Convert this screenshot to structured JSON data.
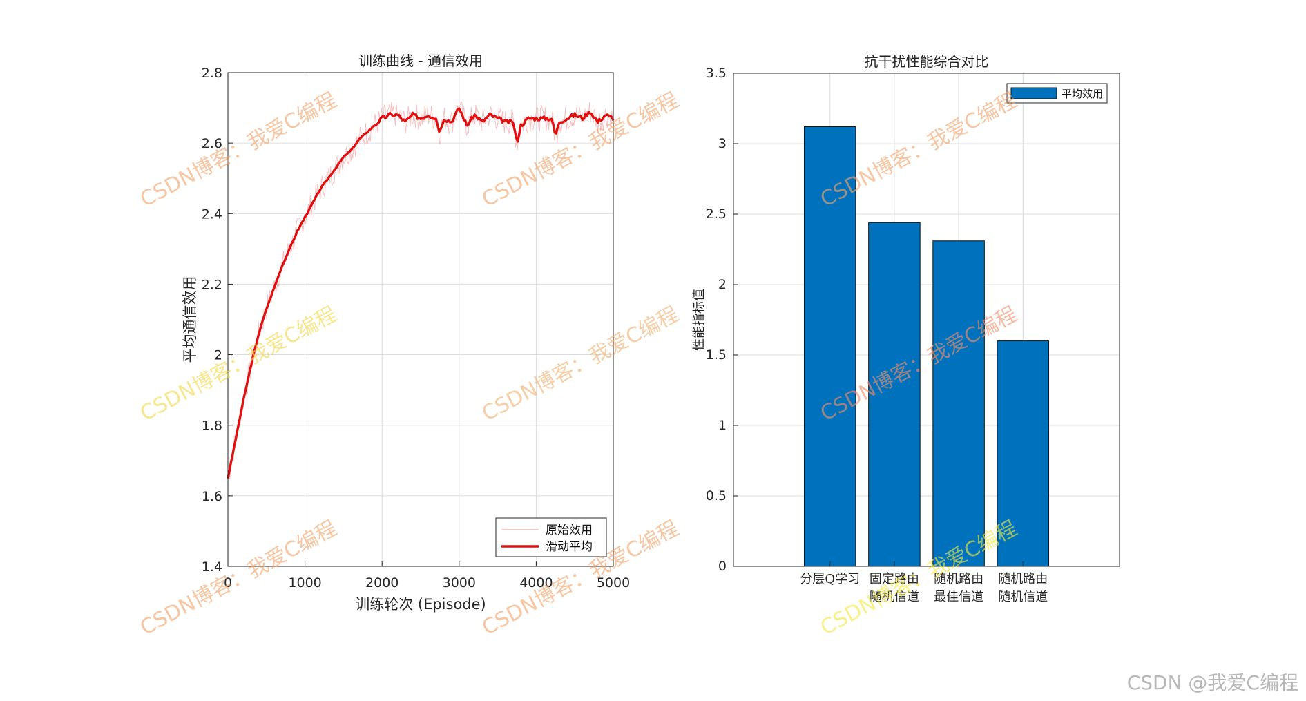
{
  "chart_data": [
    {
      "type": "line",
      "title": "训练曲线 - 通信效用",
      "xlabel": "训练轮次 (Episode)",
      "ylabel": "平均通信效用",
      "xlim": [
        0,
        5000
      ],
      "ylim": [
        1.4,
        2.8
      ],
      "xticks": [
        0,
        1000,
        2000,
        3000,
        4000,
        5000
      ],
      "xtick_labels": [
        "0",
        "1000",
        "2000",
        "3000",
        "4000",
        "5000"
      ],
      "yticks": [
        1.4,
        1.6,
        1.8,
        2.0,
        2.2,
        2.4,
        2.6,
        2.8
      ],
      "ytick_labels": [
        "1.4",
        "1.6",
        "1.8",
        "2",
        "2.2",
        "2.4",
        "2.6",
        "2.8"
      ],
      "grid": true,
      "legend": "bottom-right",
      "series": [
        {
          "name": "原始效用",
          "color": "#f4b6b6",
          "style": "thin-noisy"
        },
        {
          "name": "滑动平均",
          "color": "#e01010",
          "x": [
            0,
            100,
            200,
            300,
            400,
            500,
            600,
            700,
            800,
            900,
            1000,
            1100,
            1200,
            1300,
            1400,
            1500,
            1600,
            1700,
            1800,
            1900,
            2000,
            2100,
            2200,
            2300,
            2400,
            2500,
            2600,
            2700,
            2750,
            2800,
            2900,
            3000,
            3100,
            3200,
            3300,
            3400,
            3500,
            3600,
            3700,
            3750,
            3800,
            3900,
            4000,
            4100,
            4200,
            4250,
            4300,
            4400,
            4500,
            4600,
            4700,
            4800,
            4900,
            5000
          ],
          "y": [
            1.65,
            1.76,
            1.87,
            1.97,
            2.06,
            2.13,
            2.19,
            2.25,
            2.3,
            2.35,
            2.39,
            2.43,
            2.47,
            2.5,
            2.53,
            2.56,
            2.58,
            2.61,
            2.63,
            2.65,
            2.67,
            2.68,
            2.68,
            2.66,
            2.68,
            2.67,
            2.68,
            2.67,
            2.63,
            2.67,
            2.66,
            2.7,
            2.65,
            2.68,
            2.66,
            2.68,
            2.67,
            2.66,
            2.66,
            2.6,
            2.65,
            2.67,
            2.67,
            2.67,
            2.67,
            2.62,
            2.66,
            2.67,
            2.68,
            2.67,
            2.69,
            2.66,
            2.68,
            2.67
          ]
        }
      ]
    },
    {
      "type": "bar",
      "title": "抗干扰性能综合对比",
      "ylabel": "性能指标值",
      "ylim": [
        0,
        3.5
      ],
      "yticks": [
        0,
        0.5,
        1,
        1.5,
        2,
        2.5,
        3,
        3.5
      ],
      "ytick_labels": [
        "0",
        "0.5",
        "1",
        "1.5",
        "2",
        "2.5",
        "3",
        "3.5"
      ],
      "categories": [
        "分层Q学习",
        "固定路由\n随机信道",
        "随机路由\n最佳信道",
        "随机路由\n随机信道"
      ],
      "grid": true,
      "legend": "top-right",
      "series": [
        {
          "name": "平均效用",
          "color": "#0072bd",
          "values": [
            3.12,
            2.44,
            2.31,
            1.6
          ]
        }
      ]
    }
  ],
  "watermarks": {
    "text": "CSDN博客：我爱C编程",
    "corner_text": "CSDN @我爱C编程"
  }
}
